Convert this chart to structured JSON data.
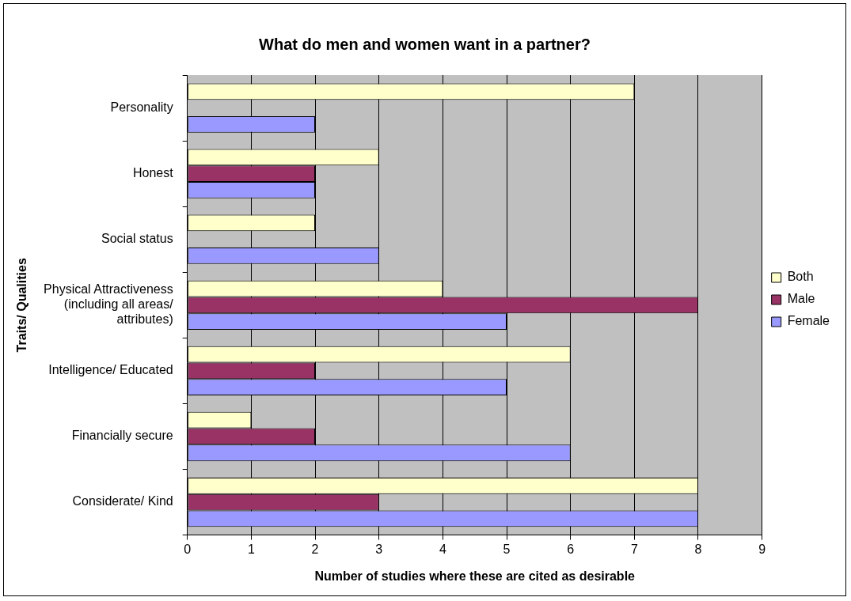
{
  "chart_data": {
    "type": "bar",
    "orientation": "horizontal",
    "title": "What do men and women want in a partner?",
    "xlabel": "Number of studies where these are cited as desirable",
    "ylabel": "Traits/ Qualities",
    "categories": [
      "Personality",
      "Honest",
      "Social status",
      "Physical Attractiveness (including all areas/ attributes)",
      "Intelligence/ Educated",
      "Financially secure",
      "Considerate/ Kind"
    ],
    "series": [
      {
        "name": "Both",
        "color": "#ffffcc",
        "values": [
          7,
          3,
          2,
          4,
          6,
          1,
          8
        ]
      },
      {
        "name": "Male",
        "color": "#993366",
        "values": [
          null,
          2,
          null,
          8,
          2,
          2,
          3
        ]
      },
      {
        "name": "Female",
        "color": "#9999ff",
        "values": [
          2,
          2,
          3,
          5,
          5,
          6,
          8
        ]
      }
    ],
    "xlim": [
      0,
      9
    ],
    "xticks": [
      0,
      1,
      2,
      3,
      4,
      5,
      6,
      7,
      8,
      9
    ],
    "grid": "x",
    "legend": "right"
  }
}
